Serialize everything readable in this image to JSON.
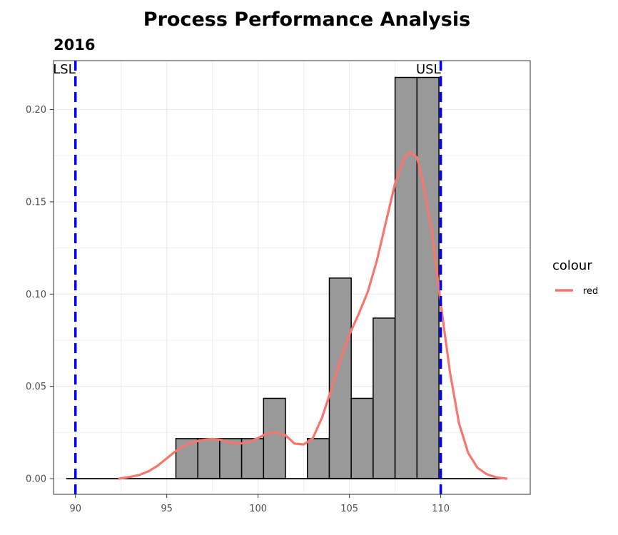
{
  "chart_data": {
    "type": "bar",
    "title": "Process Performance Analysis",
    "subtitle": "2016",
    "xlabel": "",
    "ylabel": "",
    "xlim": [
      88.8,
      114.9
    ],
    "ylim": [
      -0.0085,
      0.2265
    ],
    "x_ticks": [
      90,
      95,
      100,
      105,
      110
    ],
    "y_ticks": [
      0.0,
      0.05,
      0.1,
      0.15,
      0.2
    ],
    "y_tick_labels": [
      "0.00",
      "0.05",
      "0.10",
      "0.15",
      "0.20"
    ],
    "grid": true,
    "bin_width": 1.2,
    "histogram": [
      {
        "x0": 89.5,
        "x1": 90.7,
        "density": 0.0
      },
      {
        "x0": 90.7,
        "x1": 91.9,
        "density": 0.0
      },
      {
        "x0": 91.9,
        "x1": 93.1,
        "density": 0.0
      },
      {
        "x0": 93.1,
        "x1": 94.3,
        "density": 0.0
      },
      {
        "x0": 94.3,
        "x1": 95.5,
        "density": 0.0
      },
      {
        "x0": 95.5,
        "x1": 96.7,
        "density": 0.0217
      },
      {
        "x0": 96.7,
        "x1": 97.9,
        "density": 0.0217
      },
      {
        "x0": 97.9,
        "x1": 99.1,
        "density": 0.0217
      },
      {
        "x0": 99.1,
        "x1": 100.3,
        "density": 0.0217
      },
      {
        "x0": 100.3,
        "x1": 101.5,
        "density": 0.0435
      },
      {
        "x0": 101.5,
        "x1": 102.7,
        "density": 0.0
      },
      {
        "x0": 102.7,
        "x1": 103.9,
        "density": 0.0217
      },
      {
        "x0": 103.9,
        "x1": 105.1,
        "density": 0.1087
      },
      {
        "x0": 105.1,
        "x1": 106.3,
        "density": 0.0435
      },
      {
        "x0": 106.3,
        "x1": 107.5,
        "density": 0.087
      },
      {
        "x0": 107.5,
        "x1": 108.7,
        "density": 0.2174
      },
      {
        "x0": 108.7,
        "x1": 109.9,
        "density": 0.2174
      },
      {
        "x0": 109.9,
        "x1": 111.1,
        "density": 0.0
      },
      {
        "x0": 111.1,
        "x1": 112.3,
        "density": 0.0
      },
      {
        "x0": 112.3,
        "x1": 113.5,
        "density": 0.0
      }
    ],
    "density_curve": {
      "name": "red",
      "color": "#F8766D",
      "points": [
        [
          92.4,
          0.0
        ],
        [
          93.0,
          0.001
        ],
        [
          93.5,
          0.002
        ],
        [
          94.0,
          0.004
        ],
        [
          94.5,
          0.007
        ],
        [
          95.0,
          0.011
        ],
        [
          95.5,
          0.015
        ],
        [
          96.0,
          0.018
        ],
        [
          96.5,
          0.02
        ],
        [
          97.0,
          0.021
        ],
        [
          97.5,
          0.0215
        ],
        [
          98.0,
          0.021
        ],
        [
          98.5,
          0.0195
        ],
        [
          99.0,
          0.019
        ],
        [
          99.5,
          0.02
        ],
        [
          100.0,
          0.022
        ],
        [
          100.5,
          0.0245
        ],
        [
          101.0,
          0.025
        ],
        [
          101.5,
          0.0235
        ],
        [
          102.0,
          0.019
        ],
        [
          102.5,
          0.0185
        ],
        [
          103.0,
          0.022
        ],
        [
          103.5,
          0.033
        ],
        [
          104.0,
          0.048
        ],
        [
          104.5,
          0.064
        ],
        [
          105.0,
          0.078
        ],
        [
          105.5,
          0.089
        ],
        [
          106.0,
          0.101
        ],
        [
          106.5,
          0.118
        ],
        [
          107.0,
          0.139
        ],
        [
          107.5,
          0.16
        ],
        [
          108.0,
          0.174
        ],
        [
          108.3,
          0.177
        ],
        [
          108.7,
          0.174
        ],
        [
          109.0,
          0.162
        ],
        [
          109.5,
          0.135
        ],
        [
          110.0,
          0.095
        ],
        [
          110.5,
          0.058
        ],
        [
          111.0,
          0.03
        ],
        [
          111.5,
          0.014
        ],
        [
          112.0,
          0.006
        ],
        [
          112.5,
          0.0025
        ],
        [
          113.0,
          0.0008
        ],
        [
          113.6,
          0.0
        ]
      ]
    },
    "reference_lines": [
      {
        "label": "LSL",
        "x": 90,
        "color": "#0000FF",
        "style": "dashed"
      },
      {
        "label": "USL",
        "x": 110,
        "color": "#0000FF",
        "style": "dashed"
      }
    ],
    "bar_fill": "#999999",
    "bar_stroke": "#000000",
    "legend": {
      "title": "colour",
      "placement": "right",
      "entries": [
        {
          "label": "red",
          "color": "#F8766D"
        }
      ]
    }
  }
}
